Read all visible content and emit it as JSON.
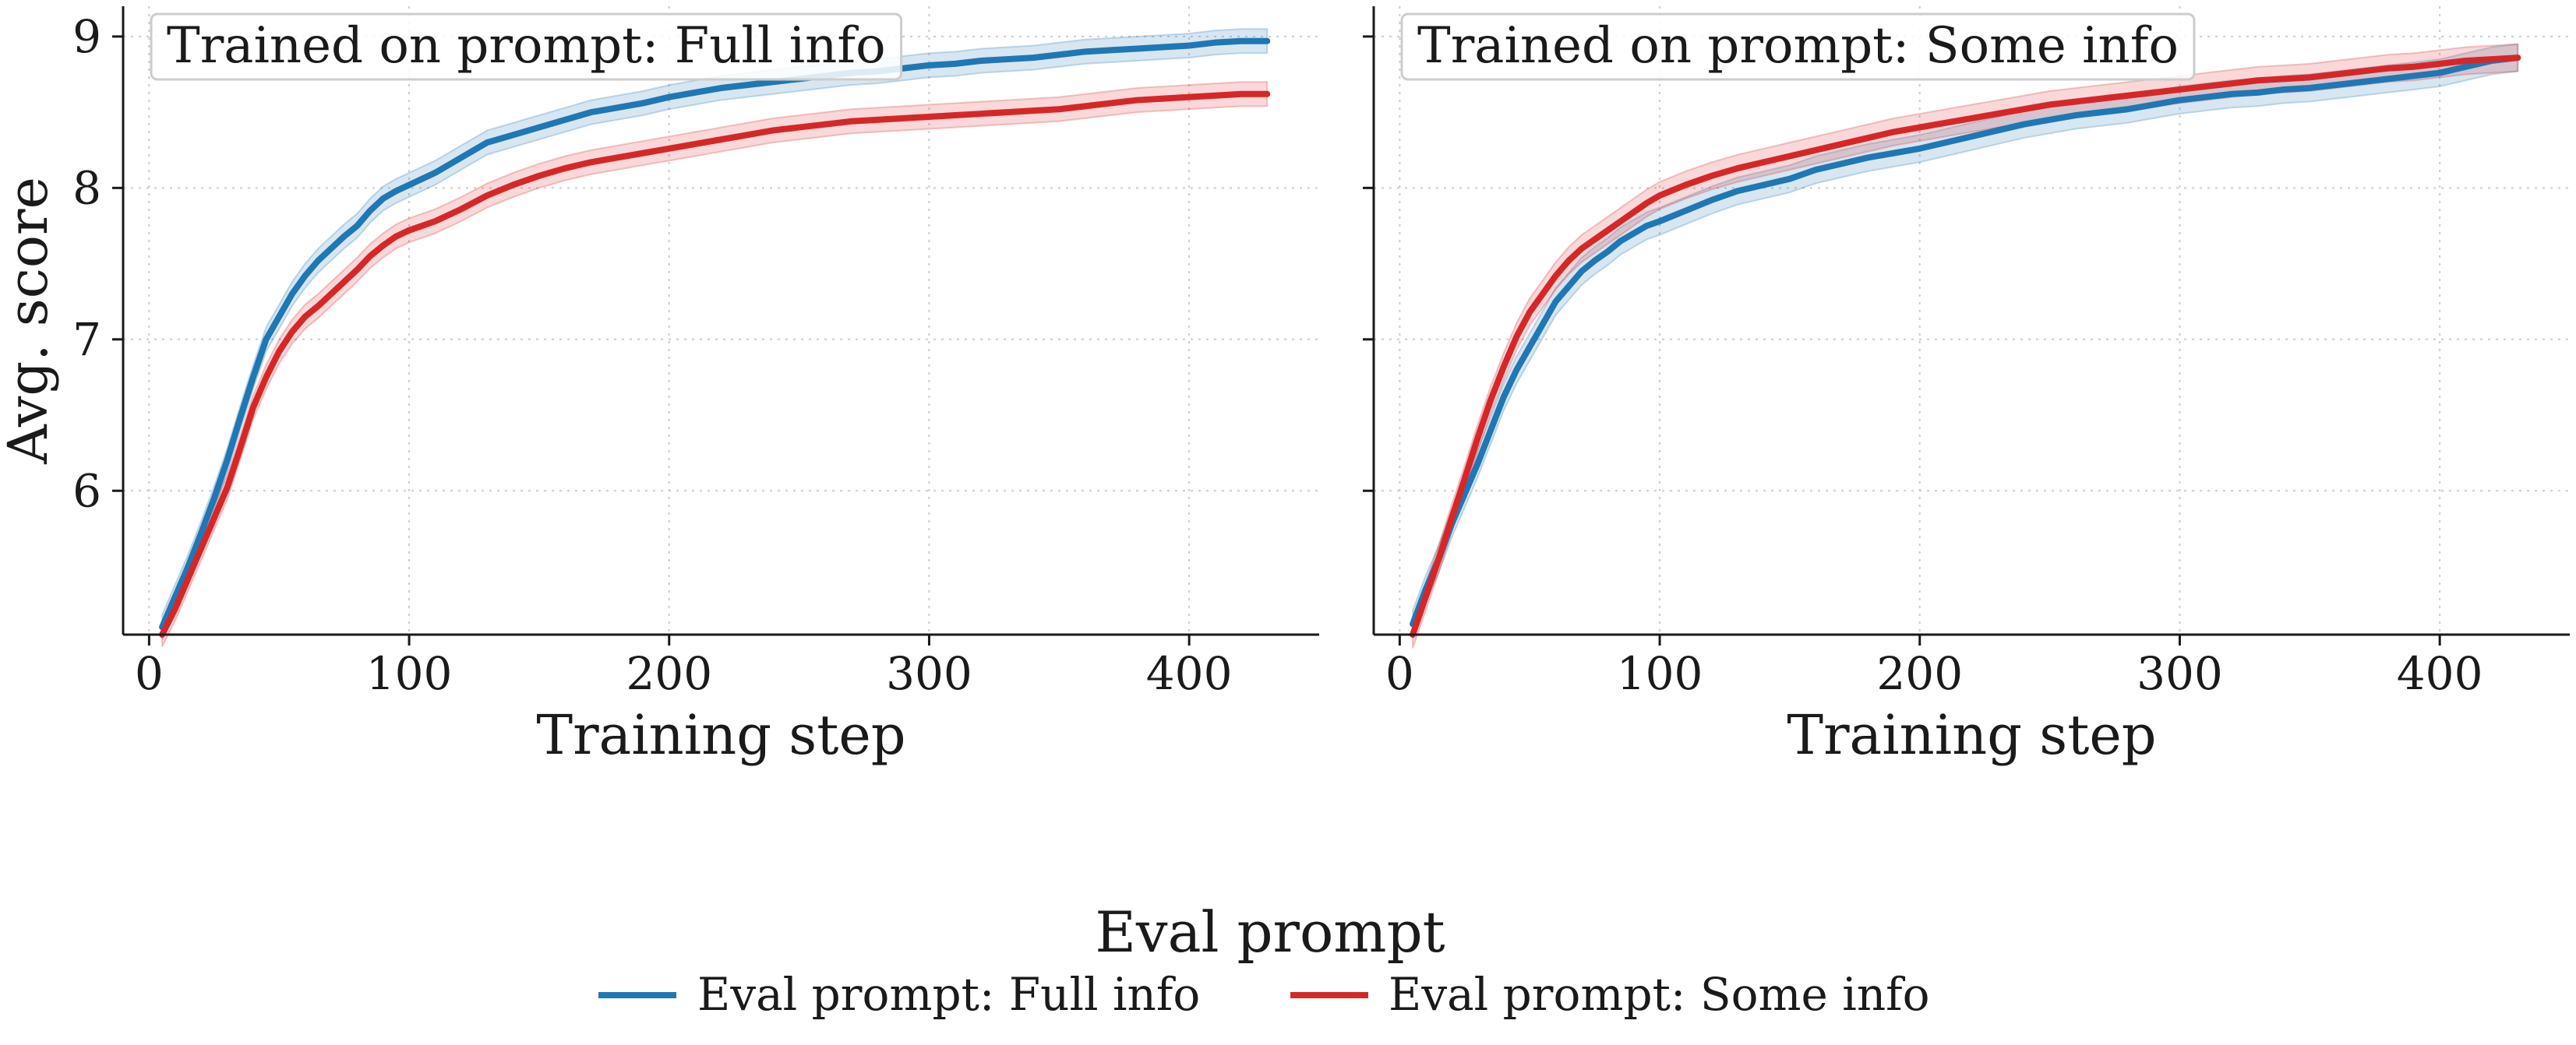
{
  "chart_data": [
    {
      "type": "line",
      "title": "Trained on prompt: Full info",
      "xlabel": "Training step",
      "ylabel": "Avg. score",
      "xlim": [
        -10,
        450
      ],
      "ylim": [
        5.05,
        9.2
      ],
      "xticks": [
        0,
        100,
        200,
        300,
        400
      ],
      "yticks": [
        6,
        7,
        8,
        9
      ],
      "grid": true,
      "x": [
        5,
        10,
        15,
        20,
        25,
        30,
        35,
        40,
        45,
        50,
        55,
        60,
        65,
        70,
        75,
        80,
        85,
        90,
        95,
        100,
        110,
        120,
        130,
        140,
        150,
        160,
        170,
        180,
        190,
        200,
        210,
        220,
        230,
        240,
        250,
        260,
        270,
        280,
        290,
        300,
        310,
        320,
        330,
        340,
        350,
        360,
        370,
        380,
        390,
        400,
        410,
        420,
        430
      ],
      "series": [
        {
          "name": "Eval prompt: Full info",
          "color": "#1f77b4",
          "values": [
            5.1,
            5.3,
            5.5,
            5.72,
            5.95,
            6.2,
            6.48,
            6.75,
            7.0,
            7.15,
            7.3,
            7.42,
            7.52,
            7.6,
            7.68,
            7.75,
            7.85,
            7.93,
            7.98,
            8.02,
            8.1,
            8.2,
            8.3,
            8.35,
            8.4,
            8.45,
            8.5,
            8.53,
            8.56,
            8.6,
            8.63,
            8.66,
            8.68,
            8.7,
            8.72,
            8.74,
            8.76,
            8.77,
            8.79,
            8.81,
            8.82,
            8.84,
            8.85,
            8.86,
            8.88,
            8.9,
            8.91,
            8.92,
            8.93,
            8.94,
            8.96,
            8.97,
            8.97
          ],
          "band": 0.08
        },
        {
          "name": "Eval prompt: Some info",
          "color": "#d62728",
          "values": [
            5.05,
            5.22,
            5.42,
            5.62,
            5.82,
            6.02,
            6.28,
            6.55,
            6.75,
            6.92,
            7.05,
            7.15,
            7.22,
            7.3,
            7.38,
            7.46,
            7.55,
            7.62,
            7.68,
            7.72,
            7.78,
            7.86,
            7.95,
            8.02,
            8.08,
            8.13,
            8.17,
            8.2,
            8.23,
            8.26,
            8.29,
            8.32,
            8.35,
            8.38,
            8.4,
            8.42,
            8.44,
            8.45,
            8.46,
            8.47,
            8.48,
            8.49,
            8.5,
            8.51,
            8.52,
            8.54,
            8.56,
            8.58,
            8.59,
            8.6,
            8.61,
            8.62,
            8.62
          ],
          "band": 0.08
        }
      ]
    },
    {
      "type": "line",
      "title": "Trained on prompt: Some info",
      "xlabel": "Training step",
      "ylabel": "",
      "xlim": [
        -10,
        450
      ],
      "ylim": [
        5.05,
        9.2
      ],
      "xticks": [
        0,
        100,
        200,
        300,
        400
      ],
      "yticks": [
        6,
        7,
        8,
        9
      ],
      "grid": true,
      "x": [
        5,
        10,
        15,
        20,
        25,
        30,
        35,
        40,
        45,
        50,
        55,
        60,
        65,
        70,
        75,
        80,
        85,
        90,
        95,
        100,
        110,
        120,
        130,
        140,
        150,
        160,
        170,
        180,
        190,
        200,
        210,
        220,
        230,
        240,
        250,
        260,
        270,
        280,
        290,
        300,
        310,
        320,
        330,
        340,
        350,
        360,
        370,
        380,
        390,
        400,
        410,
        420,
        430
      ],
      "series": [
        {
          "name": "Eval prompt: Full info",
          "color": "#1f77b4",
          "values": [
            5.12,
            5.35,
            5.55,
            5.78,
            5.98,
            6.18,
            6.4,
            6.62,
            6.8,
            6.95,
            7.1,
            7.25,
            7.35,
            7.45,
            7.52,
            7.58,
            7.65,
            7.7,
            7.75,
            7.78,
            7.85,
            7.92,
            7.98,
            8.02,
            8.06,
            8.12,
            8.16,
            8.2,
            8.23,
            8.26,
            8.3,
            8.34,
            8.38,
            8.42,
            8.45,
            8.48,
            8.5,
            8.52,
            8.55,
            8.58,
            8.6,
            8.62,
            8.63,
            8.65,
            8.66,
            8.68,
            8.7,
            8.72,
            8.74,
            8.76,
            8.8,
            8.84,
            8.86
          ],
          "band": 0.09
        },
        {
          "name": "Eval prompt: Some info",
          "color": "#d62728",
          "values": [
            5.05,
            5.3,
            5.55,
            5.82,
            6.08,
            6.35,
            6.6,
            6.82,
            7.02,
            7.18,
            7.3,
            7.42,
            7.52,
            7.6,
            7.66,
            7.72,
            7.78,
            7.84,
            7.9,
            7.95,
            8.02,
            8.08,
            8.13,
            8.17,
            8.21,
            8.25,
            8.29,
            8.33,
            8.37,
            8.4,
            8.43,
            8.46,
            8.49,
            8.52,
            8.55,
            8.57,
            8.59,
            8.61,
            8.63,
            8.65,
            8.67,
            8.69,
            8.71,
            8.72,
            8.73,
            8.75,
            8.77,
            8.79,
            8.8,
            8.82,
            8.84,
            8.85,
            8.86
          ],
          "band": 0.09
        }
      ]
    }
  ],
  "legend": {
    "title": "Eval prompt",
    "placement": "bottom-center",
    "items": [
      {
        "label": "Eval prompt: Full info",
        "color": "#1f77b4"
      },
      {
        "label": "Eval prompt: Some info",
        "color": "#d62728"
      }
    ]
  }
}
